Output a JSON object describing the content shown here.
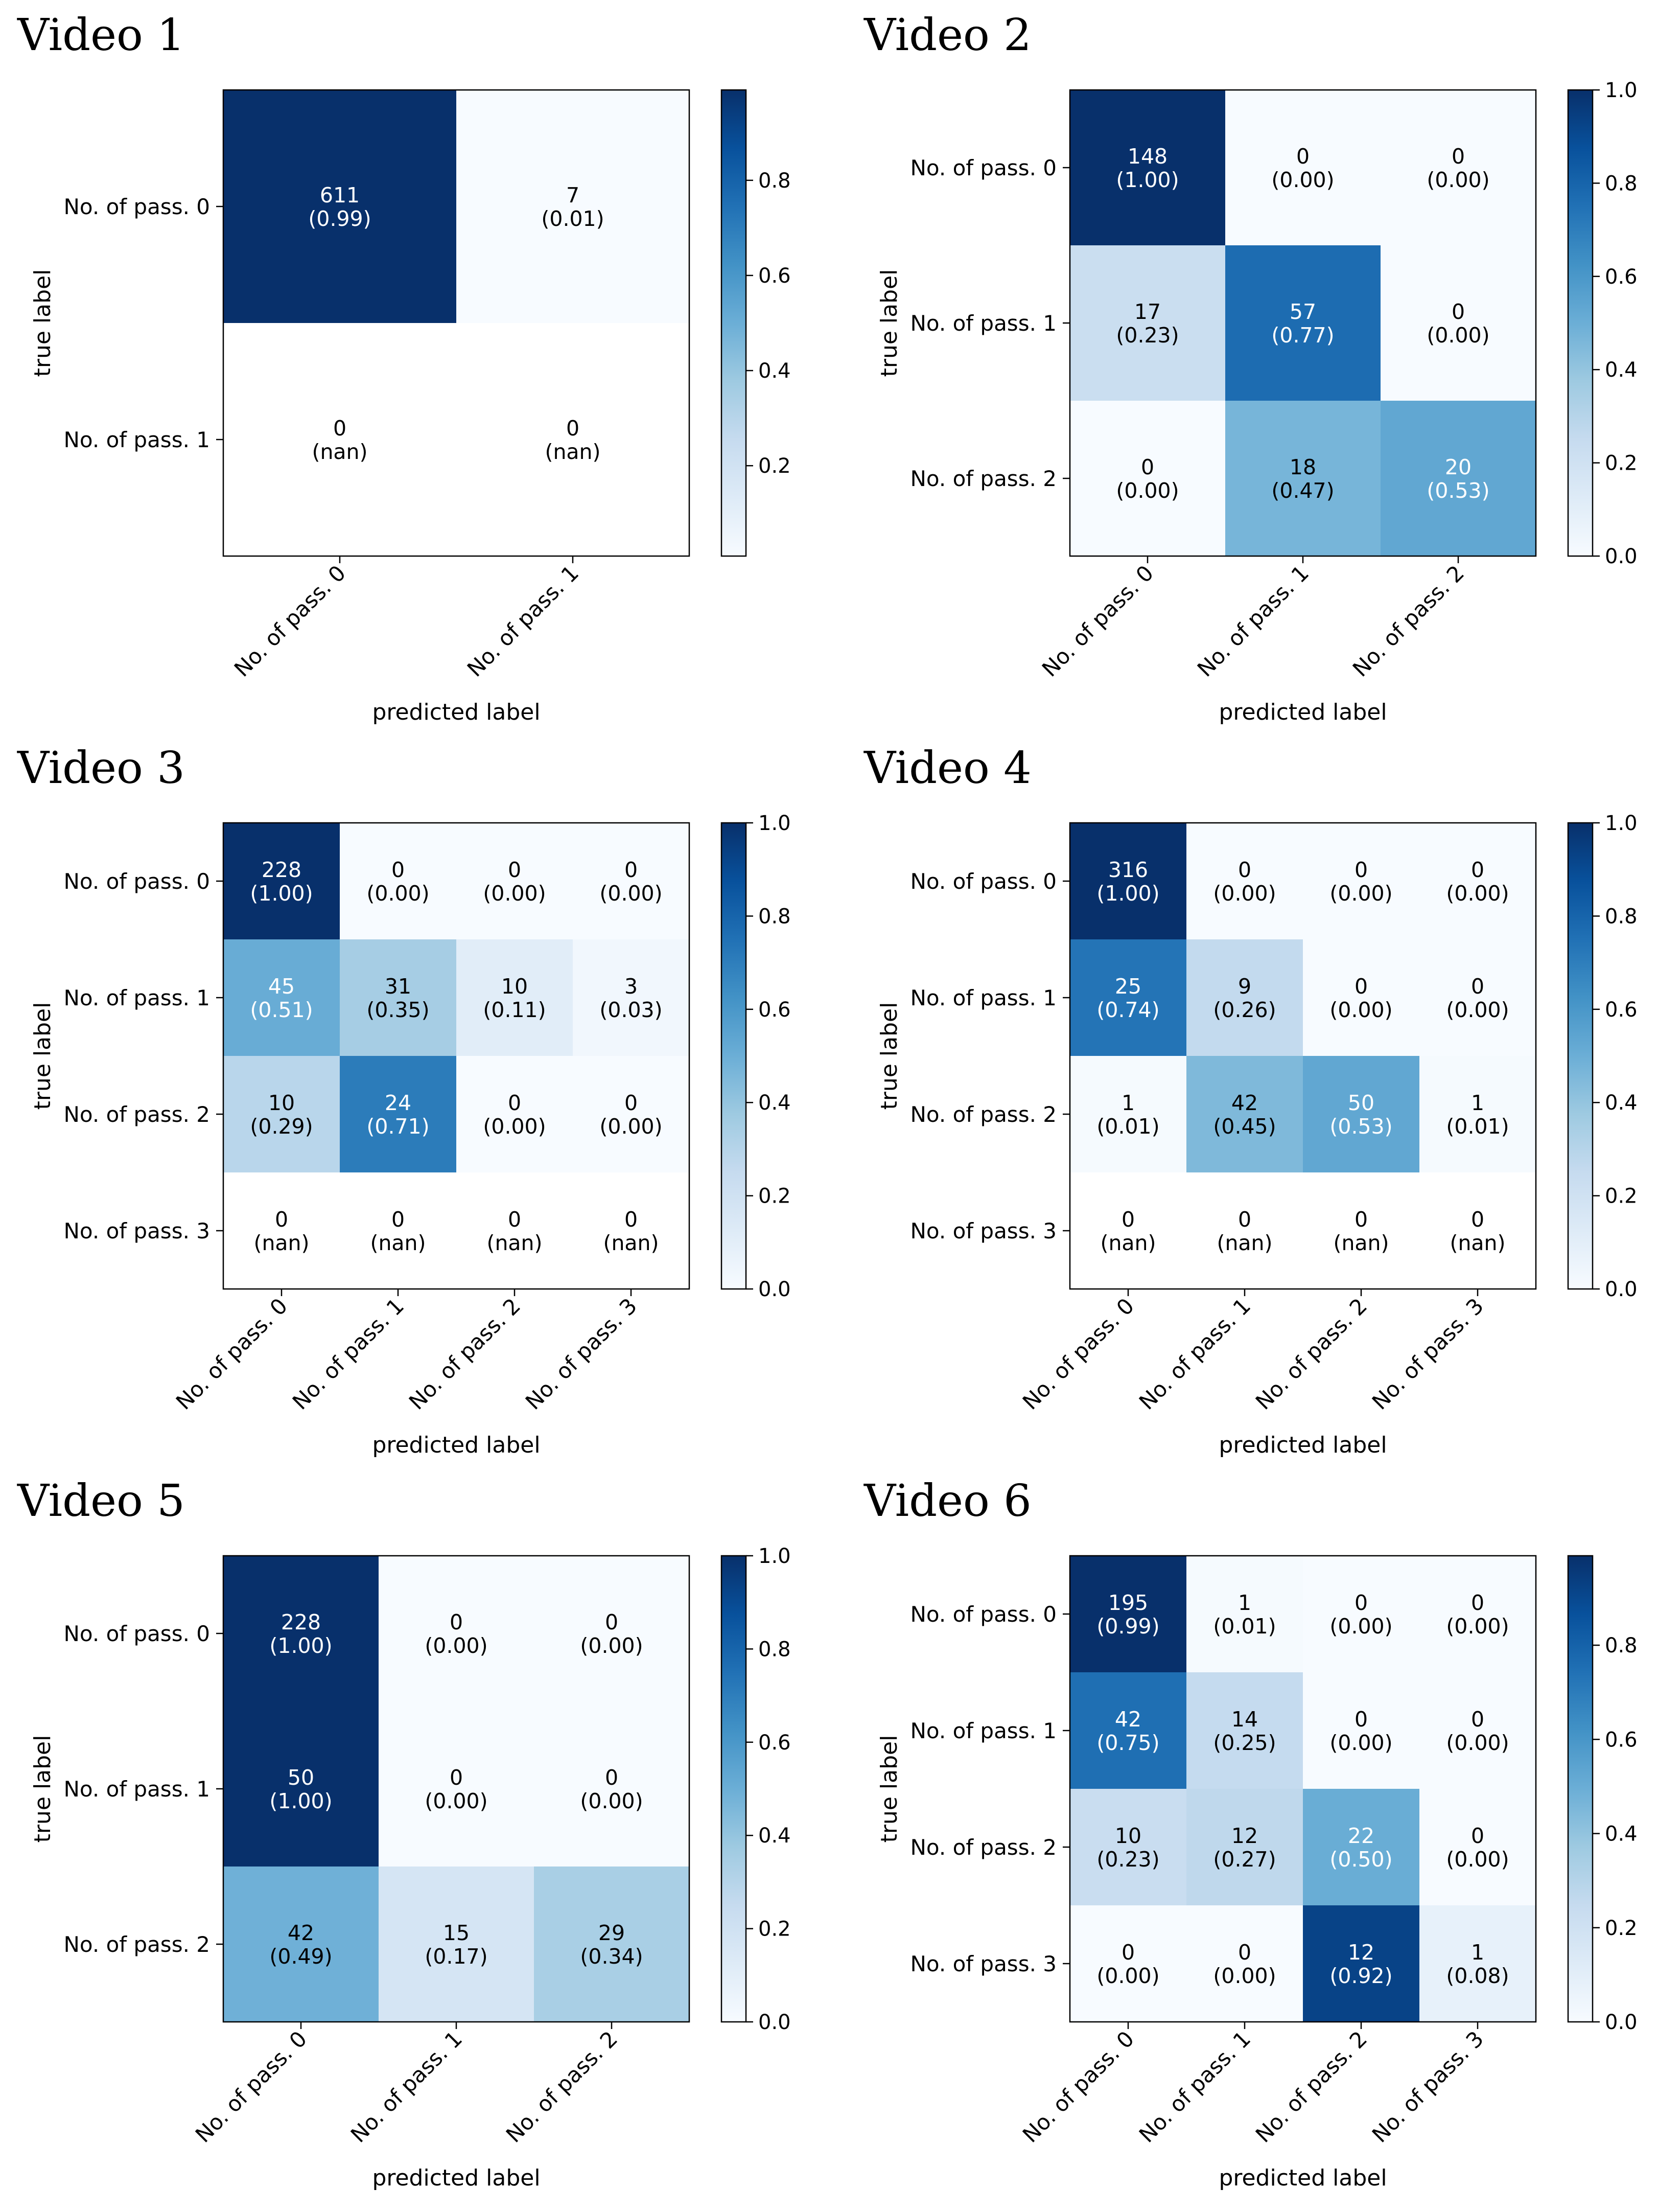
{
  "chart_data": [
    {
      "type": "heatmap",
      "title": "Video 1",
      "xlabel": "predicted label",
      "ylabel": "true label",
      "x_categories": [
        "No. of pass. 0",
        "No. of pass. 1"
      ],
      "y_categories": [
        "No. of pass. 0",
        "No. of pass. 1"
      ],
      "counts": [
        [
          611,
          7
        ],
        [
          0,
          0
        ]
      ],
      "normalized": [
        [
          "0.99",
          "0.01"
        ],
        [
          "nan",
          "nan"
        ]
      ],
      "colorbar": {
        "range": [
          0.01,
          0.99
        ],
        "ticks": [
          "0.2",
          "0.4",
          "0.6",
          "0.8"
        ]
      }
    },
    {
      "type": "heatmap",
      "title": "Video 2",
      "xlabel": "predicted label",
      "ylabel": "true label",
      "x_categories": [
        "No. of pass. 0",
        "No. of pass. 1",
        "No. of pass. 2"
      ],
      "y_categories": [
        "No. of pass. 0",
        "No. of pass. 1",
        "No. of pass. 2"
      ],
      "counts": [
        [
          148,
          0,
          0
        ],
        [
          17,
          57,
          0
        ],
        [
          0,
          18,
          20
        ]
      ],
      "normalized": [
        [
          "1.00",
          "0.00",
          "0.00"
        ],
        [
          "0.23",
          "0.77",
          "0.00"
        ],
        [
          "0.00",
          "0.47",
          "0.53"
        ]
      ],
      "colorbar": {
        "range": [
          0.0,
          1.0
        ],
        "ticks": [
          "0.0",
          "0.2",
          "0.4",
          "0.6",
          "0.8",
          "1.0"
        ]
      }
    },
    {
      "type": "heatmap",
      "title": "Video 3",
      "xlabel": "predicted label",
      "ylabel": "true label",
      "x_categories": [
        "No. of pass. 0",
        "No. of pass. 1",
        "No. of pass. 2",
        "No. of pass. 3"
      ],
      "y_categories": [
        "No. of pass. 0",
        "No. of pass. 1",
        "No. of pass. 2",
        "No. of pass. 3"
      ],
      "counts": [
        [
          228,
          0,
          0,
          0
        ],
        [
          45,
          31,
          10,
          3
        ],
        [
          10,
          24,
          0,
          0
        ],
        [
          0,
          0,
          0,
          0
        ]
      ],
      "normalized": [
        [
          "1.00",
          "0.00",
          "0.00",
          "0.00"
        ],
        [
          "0.51",
          "0.35",
          "0.11",
          "0.03"
        ],
        [
          "0.29",
          "0.71",
          "0.00",
          "0.00"
        ],
        [
          "nan",
          "nan",
          "nan",
          "nan"
        ]
      ],
      "colorbar": {
        "range": [
          0.0,
          1.0
        ],
        "ticks": [
          "0.0",
          "0.2",
          "0.4",
          "0.6",
          "0.8",
          "1.0"
        ]
      }
    },
    {
      "type": "heatmap",
      "title": "Video 4",
      "xlabel": "predicted label",
      "ylabel": "true label",
      "x_categories": [
        "No. of pass. 0",
        "No. of pass. 1",
        "No. of pass. 2",
        "No. of pass. 3"
      ],
      "y_categories": [
        "No. of pass. 0",
        "No. of pass. 1",
        "No. of pass. 2",
        "No. of pass. 3"
      ],
      "counts": [
        [
          316,
          0,
          0,
          0
        ],
        [
          25,
          9,
          0,
          0
        ],
        [
          1,
          42,
          50,
          1
        ],
        [
          0,
          0,
          0,
          0
        ]
      ],
      "normalized": [
        [
          "1.00",
          "0.00",
          "0.00",
          "0.00"
        ],
        [
          "0.74",
          "0.26",
          "0.00",
          "0.00"
        ],
        [
          "0.01",
          "0.45",
          "0.53",
          "0.01"
        ],
        [
          "nan",
          "nan",
          "nan",
          "nan"
        ]
      ],
      "colorbar": {
        "range": [
          0.0,
          1.0
        ],
        "ticks": [
          "0.0",
          "0.2",
          "0.4",
          "0.6",
          "0.8",
          "1.0"
        ]
      }
    },
    {
      "type": "heatmap",
      "title": "Video 5",
      "xlabel": "predicted label",
      "ylabel": "true label",
      "x_categories": [
        "No. of pass. 0",
        "No. of pass. 1",
        "No. of pass. 2"
      ],
      "y_categories": [
        "No. of pass. 0",
        "No. of pass. 1",
        "No. of pass. 2"
      ],
      "counts": [
        [
          228,
          0,
          0
        ],
        [
          50,
          0,
          0
        ],
        [
          42,
          15,
          29
        ]
      ],
      "normalized": [
        [
          "1.00",
          "0.00",
          "0.00"
        ],
        [
          "1.00",
          "0.00",
          "0.00"
        ],
        [
          "0.49",
          "0.17",
          "0.34"
        ]
      ],
      "colorbar": {
        "range": [
          0.0,
          1.0
        ],
        "ticks": [
          "0.0",
          "0.2",
          "0.4",
          "0.6",
          "0.8",
          "1.0"
        ]
      }
    },
    {
      "type": "heatmap",
      "title": "Video 6",
      "xlabel": "predicted label",
      "ylabel": "true label",
      "x_categories": [
        "No. of pass. 0",
        "No. of pass. 1",
        "No. of pass. 2",
        "No. of pass. 3"
      ],
      "y_categories": [
        "No. of pass. 0",
        "No. of pass. 1",
        "No. of pass. 2",
        "No. of pass. 3"
      ],
      "counts": [
        [
          195,
          1,
          0,
          0
        ],
        [
          42,
          14,
          0,
          0
        ],
        [
          10,
          12,
          22,
          0
        ],
        [
          0,
          0,
          12,
          1
        ]
      ],
      "normalized": [
        [
          "0.99",
          "0.01",
          "0.00",
          "0.00"
        ],
        [
          "0.75",
          "0.25",
          "0.00",
          "0.00"
        ],
        [
          "0.23",
          "0.27",
          "0.50",
          "0.00"
        ],
        [
          "0.00",
          "0.00",
          "0.92",
          "0.08"
        ]
      ],
      "colorbar": {
        "range": [
          0.0,
          0.99
        ],
        "ticks": [
          "0.0",
          "0.2",
          "0.4",
          "0.6",
          "0.8"
        ]
      }
    }
  ],
  "colors": {
    "colormap": "Blues",
    "low": "#f7fbff",
    "high": "#08306b",
    "axis": "#000000",
    "nan_cell": "#ffffff",
    "background": "#ffffff"
  }
}
